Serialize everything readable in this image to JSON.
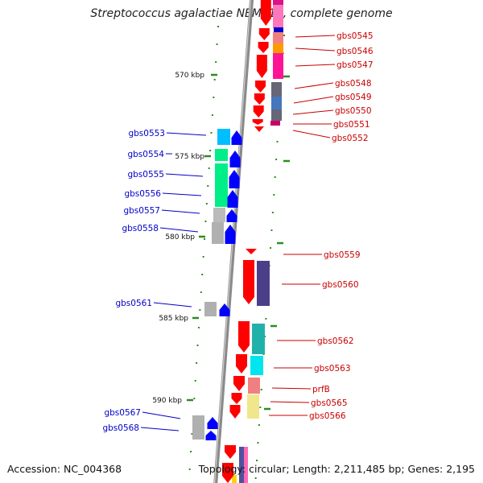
{
  "title": "Streptococcus agalactiae NEM316, complete genome",
  "footer": {
    "accession": "Accession: NC_004368",
    "topology": "Topology: circular; Length: 2,211,485 bp; Genes: 2,195"
  },
  "colors": {
    "forward_label": "#0000c8",
    "reverse_label": "#c80000",
    "backbone": "#8a8a8a",
    "tick": "#2e8b20",
    "forward_arrow": "#0000ff",
    "reverse_arrow": "#ff0000"
  },
  "ticks": {
    "major_labels": [
      "570 kbp",
      "575 kbp",
      "580 kbp",
      "585 kbp",
      "590 kbp"
    ]
  },
  "genes": {
    "reverse_strand": [
      "gbs0545",
      "gbs0546",
      "gbs0547",
      "gbs0548",
      "gbs0549",
      "gbs0550",
      "gbs0551",
      "gbs0552",
      "gbs0559",
      "gbs0560",
      "gbs0562",
      "gbs0563",
      "prfB",
      "gbs0565",
      "gbs0566"
    ],
    "forward_strand": [
      "gbs0553",
      "gbs0554",
      "gbs0555",
      "gbs0556",
      "gbs0557",
      "gbs0558",
      "gbs0561",
      "gbs0567",
      "gbs0568"
    ]
  }
}
